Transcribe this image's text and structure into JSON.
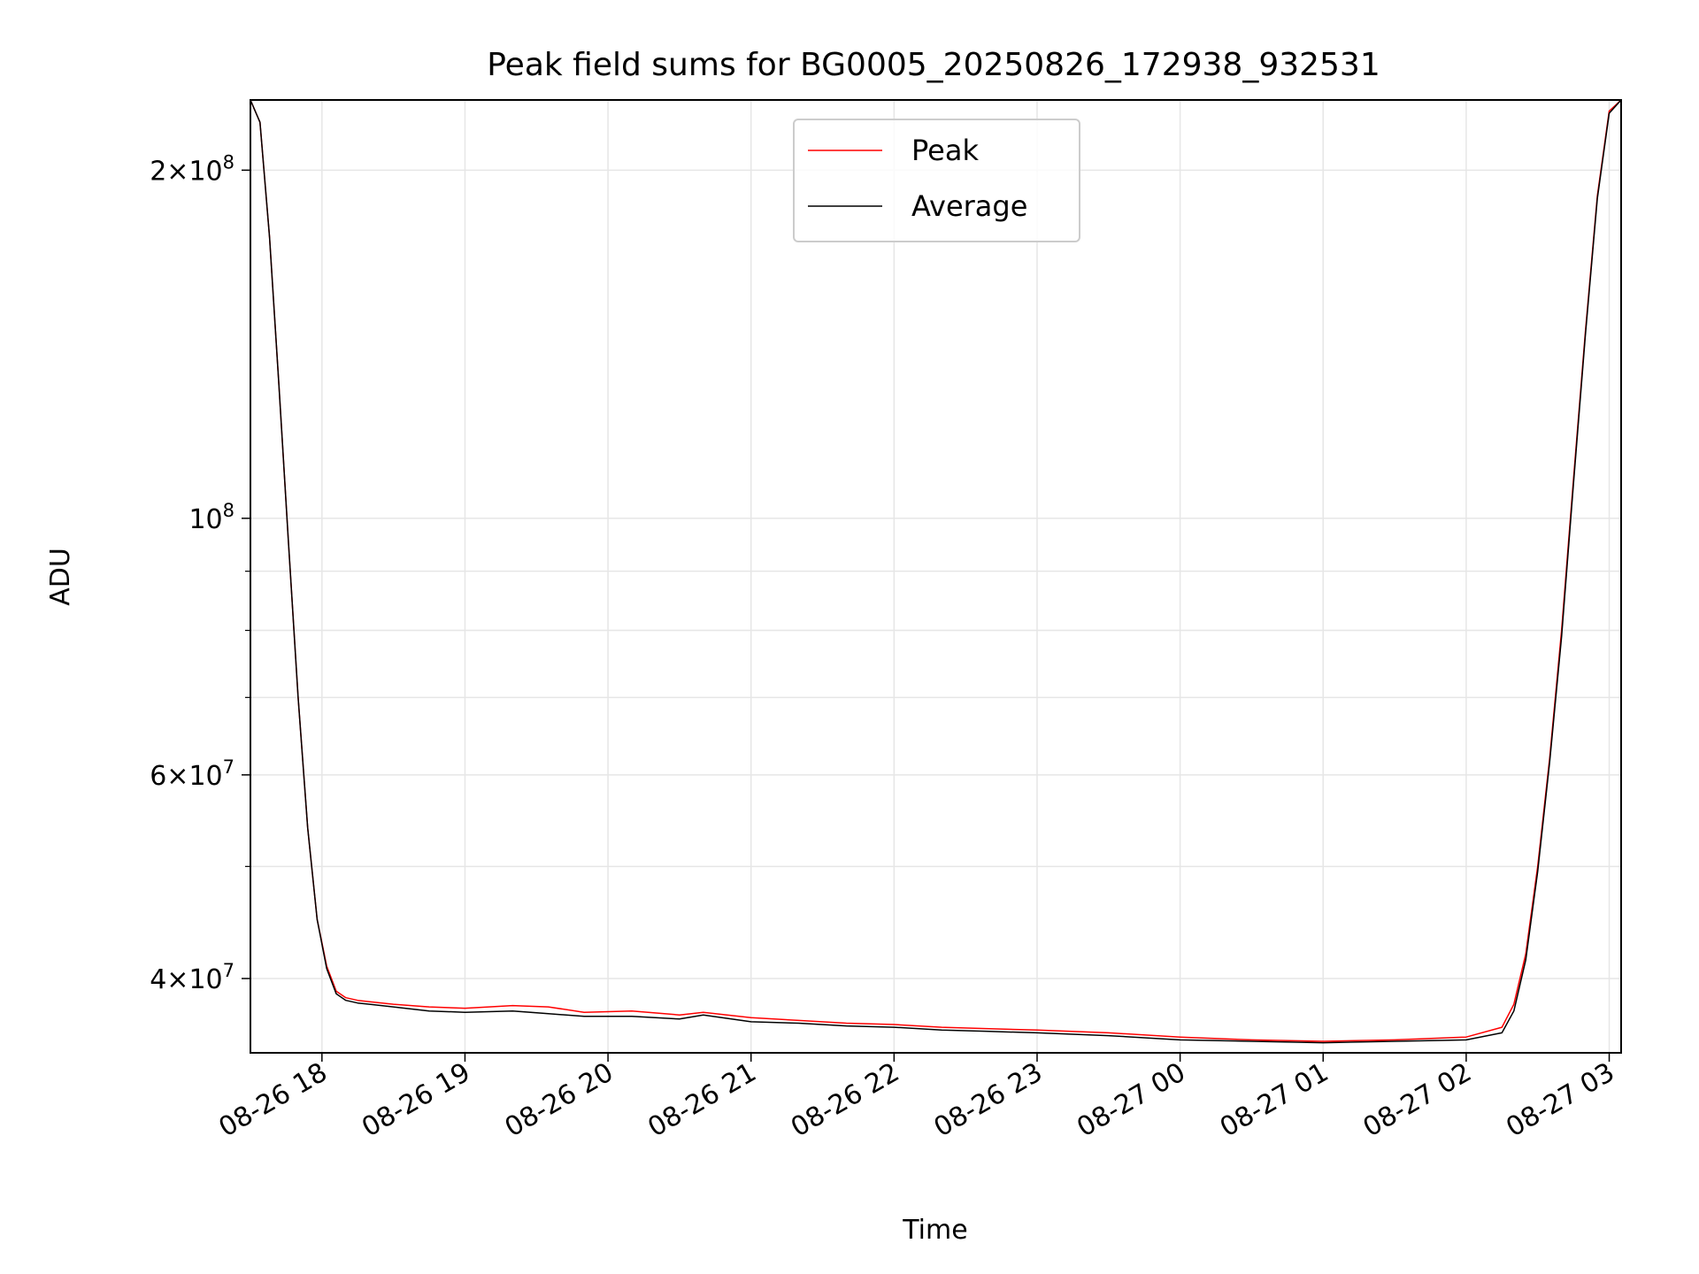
{
  "chart_data": {
    "type": "line",
    "title": "Peak field sums for BG0005_20250826_172938_932531",
    "xlabel": "Time",
    "ylabel": "ADU",
    "yscale": "log",
    "grid": true,
    "legend_position": "top-center",
    "xlim": [
      "2025-08-26 17:30",
      "2025-08-27 03:05"
    ],
    "ylim": [
      34500000,
      230000000
    ],
    "x_ticks": [
      "08-26 18",
      "08-26 19",
      "08-26 20",
      "08-26 21",
      "08-26 22",
      "08-26 23",
      "08-27 00",
      "08-27 01",
      "08-27 02",
      "08-27 03"
    ],
    "y_ticks": [
      {
        "value": 40000000,
        "base": "4",
        "exp": "7",
        "mult": true
      },
      {
        "value": 60000000,
        "base": "6",
        "exp": "7",
        "mult": true
      },
      {
        "value": 100000000,
        "base": "10",
        "exp": "8",
        "mult": false
      },
      {
        "value": 200000000,
        "base": "2",
        "exp": "8",
        "mult": true
      }
    ],
    "y_minor_ticks": [
      50000000,
      70000000,
      80000000,
      90000000
    ],
    "series": [
      {
        "name": "Peak",
        "color": "#ff0000",
        "x": [
          "2025-08-26 17:30",
          "2025-08-26 17:34",
          "2025-08-26 17:38",
          "2025-08-26 17:42",
          "2025-08-26 17:46",
          "2025-08-26 17:50",
          "2025-08-26 17:54",
          "2025-08-26 17:58",
          "2025-08-26 18:02",
          "2025-08-26 18:06",
          "2025-08-26 18:10",
          "2025-08-26 18:15",
          "2025-08-26 18:20",
          "2025-08-26 18:30",
          "2025-08-26 18:45",
          "2025-08-26 19:00",
          "2025-08-26 19:20",
          "2025-08-26 19:35",
          "2025-08-26 19:50",
          "2025-08-26 20:10",
          "2025-08-26 20:30",
          "2025-08-26 20:40",
          "2025-08-26 21:00",
          "2025-08-26 21:20",
          "2025-08-26 21:40",
          "2025-08-26 22:00",
          "2025-08-26 22:20",
          "2025-08-26 22:40",
          "2025-08-26 23:00",
          "2025-08-26 23:30",
          "2025-08-27 00:00",
          "2025-08-27 00:30",
          "2025-08-27 01:00",
          "2025-08-27 01:30",
          "2025-08-27 02:00",
          "2025-08-27 02:15",
          "2025-08-27 02:20",
          "2025-08-27 02:25",
          "2025-08-27 02:30",
          "2025-08-27 02:35",
          "2025-08-27 02:40",
          "2025-08-27 02:45",
          "2025-08-27 02:50",
          "2025-08-27 02:55",
          "2025-08-27 03:00",
          "2025-08-27 03:05"
        ],
        "values": [
          230000000,
          220000000,
          175000000,
          130000000,
          95000000,
          70000000,
          54000000,
          45000000,
          41000000,
          39000000,
          38500000,
          38300000,
          38200000,
          38000000,
          37800000,
          37700000,
          37900000,
          37800000,
          37400000,
          37500000,
          37200000,
          37400000,
          37000000,
          36800000,
          36600000,
          36500000,
          36300000,
          36200000,
          36100000,
          35900000,
          35600000,
          35400000,
          35300000,
          35400000,
          35600000,
          36300000,
          38000000,
          42000000,
          50000000,
          62000000,
          80000000,
          108000000,
          145000000,
          190000000,
          225000000,
          230000000
        ]
      },
      {
        "name": "Average",
        "color": "#000000",
        "x": [
          "2025-08-26 17:30",
          "2025-08-26 17:34",
          "2025-08-26 17:38",
          "2025-08-26 17:42",
          "2025-08-26 17:46",
          "2025-08-26 17:50",
          "2025-08-26 17:54",
          "2025-08-26 17:58",
          "2025-08-26 18:02",
          "2025-08-26 18:06",
          "2025-08-26 18:10",
          "2025-08-26 18:15",
          "2025-08-26 18:20",
          "2025-08-26 18:30",
          "2025-08-26 18:45",
          "2025-08-26 19:00",
          "2025-08-26 19:20",
          "2025-08-26 19:35",
          "2025-08-26 19:50",
          "2025-08-26 20:10",
          "2025-08-26 20:30",
          "2025-08-26 20:40",
          "2025-08-26 21:00",
          "2025-08-26 21:20",
          "2025-08-26 21:40",
          "2025-08-26 22:00",
          "2025-08-26 22:20",
          "2025-08-26 22:40",
          "2025-08-26 23:00",
          "2025-08-26 23:30",
          "2025-08-27 00:00",
          "2025-08-27 00:30",
          "2025-08-27 01:00",
          "2025-08-27 01:30",
          "2025-08-27 02:00",
          "2025-08-27 02:15",
          "2025-08-27 02:20",
          "2025-08-27 02:25",
          "2025-08-27 02:30",
          "2025-08-27 02:35",
          "2025-08-27 02:40",
          "2025-08-27 02:45",
          "2025-08-27 02:50",
          "2025-08-27 02:55",
          "2025-08-27 03:00",
          "2025-08-27 03:05"
        ],
        "values": [
          230000000,
          220000000,
          175000000,
          130000000,
          95000000,
          70000000,
          54000000,
          45000000,
          40800000,
          38800000,
          38300000,
          38100000,
          38000000,
          37800000,
          37500000,
          37400000,
          37500000,
          37300000,
          37100000,
          37100000,
          36900000,
          37200000,
          36700000,
          36600000,
          36400000,
          36300000,
          36100000,
          36000000,
          35900000,
          35700000,
          35400000,
          35300000,
          35200000,
          35300000,
          35400000,
          35900000,
          37500000,
          41500000,
          49500000,
          61500000,
          79000000,
          107000000,
          144000000,
          189000000,
          224000000,
          230000000
        ]
      }
    ]
  }
}
